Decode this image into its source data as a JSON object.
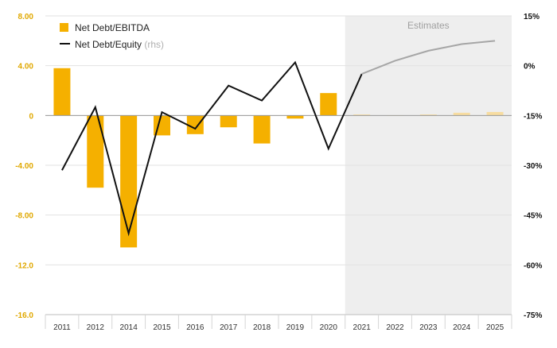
{
  "chart_data": {
    "type": "bar",
    "categories": [
      "2011",
      "2012",
      "2014",
      "2015",
      "2016",
      "2017",
      "2018",
      "2019",
      "2020",
      "2021",
      "2022",
      "2023",
      "2024",
      "2025"
    ],
    "estimate_start_index": 9,
    "estimates_label": "Estimates",
    "series": [
      {
        "name": "Net Debt/EBITDA",
        "type": "bar",
        "axis": "left",
        "color": "#f5b000",
        "estimate_color": "#f7dca0",
        "values": [
          3.8,
          -5.8,
          -10.6,
          -1.6,
          -1.5,
          -0.95,
          -2.25,
          -0.25,
          1.8,
          0.08,
          0.0,
          0.08,
          0.22,
          0.28
        ]
      },
      {
        "name": "Net Debt/Equity",
        "name_suffix": "(rhs)",
        "type": "line",
        "axis": "right",
        "color": "#111111",
        "estimate_color": "#a6a6a6",
        "values": [
          -31.5,
          -12.5,
          -50.5,
          -14,
          -19,
          -6,
          -10.5,
          1,
          -25,
          -2.5,
          1.5,
          4.5,
          6.5,
          7.5
        ]
      }
    ],
    "y_left": {
      "lim": [
        -16,
        8
      ],
      "ticks": [
        8,
        4,
        0,
        -4,
        -8,
        -12,
        -16
      ],
      "tick_labels": [
        "8.00",
        "4.00",
        "0",
        "-4.00",
        "-8.00",
        "-12.0",
        "-16.0"
      ]
    },
    "y_right": {
      "lim": [
        -75,
        15
      ],
      "ticks": [
        15,
        0,
        -15,
        -30,
        -45,
        -60,
        -75
      ],
      "tick_labels": [
        "15%",
        "0%",
        "-15%",
        "-30%",
        "-45%",
        "-60%",
        "-75%"
      ]
    },
    "grid": true,
    "legend": "top-left"
  },
  "colors": {
    "bar": "#f5b000",
    "bar_estimate": "#f7dca0",
    "line": "#111111",
    "line_estimate": "#a6a6a6",
    "estimates_shade": "#eeeeee",
    "left_axis_labels": "#e0a800",
    "right_axis_labels": "#111111",
    "legend_suffix": "#b0b0b0"
  }
}
